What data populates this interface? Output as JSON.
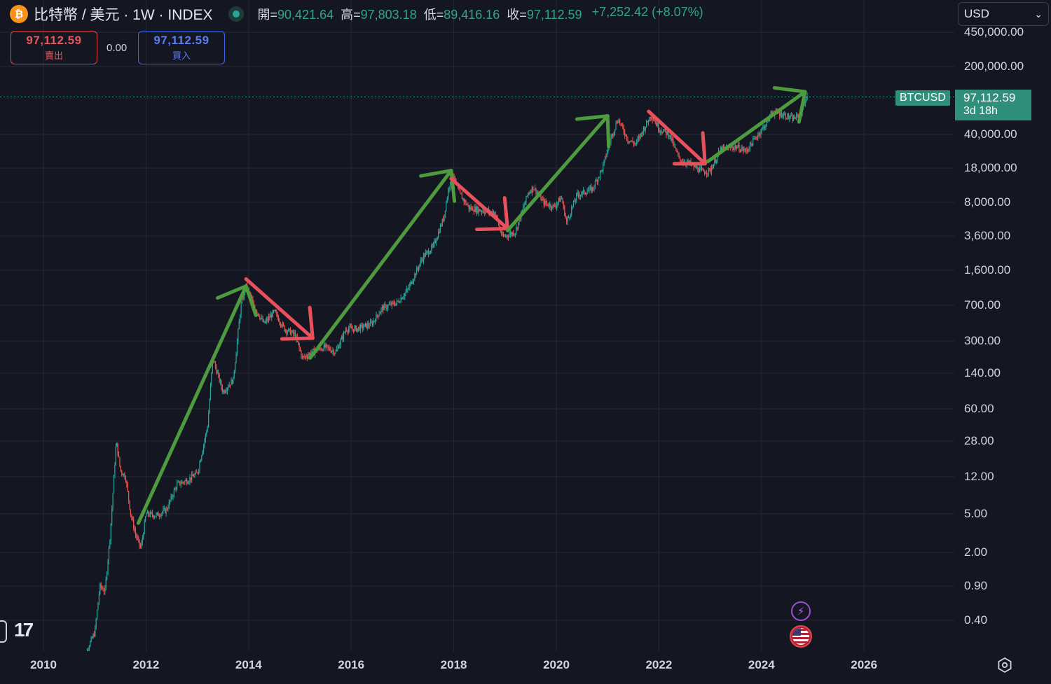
{
  "header": {
    "coin_icon_glyph": "₿",
    "title": "比特幣 / 美元 · 1W · INDEX",
    "open_label": "開=",
    "open": "90,421.64",
    "high_label": "高=",
    "high": "97,803.18",
    "low_label": "低=",
    "low": "89,416.16",
    "close_label": "收=",
    "close": "97,112.59",
    "change": "+7,252.42 (+8.07%)"
  },
  "trade": {
    "sell_price": "97,112.59",
    "sell_label": "賣出",
    "spread": "0.00",
    "buy_price": "97,112.59",
    "buy_label": "買入"
  },
  "currency": {
    "selected": "USD",
    "caret": "⌄"
  },
  "last_price": {
    "symbol": "BTCUSD",
    "price": "97,112.59",
    "countdown": "3d 18h"
  },
  "logo": {
    "text": "17"
  },
  "icons": {
    "lightning": "lightning-icon",
    "flag": "us-flag-icon",
    "settings": "gear-icon",
    "coin": "bitcoin-icon"
  },
  "colors": {
    "background": "#141722",
    "up": "#26a69a",
    "down": "#ef5350",
    "arrow_up": "#4e9a3f",
    "arrow_down": "#e8505b",
    "grid": "#262a35",
    "price_tag": "#2f8f7a"
  },
  "chart_data": {
    "type": "candlestick",
    "symbol": "BTCUSD",
    "interval": "1W",
    "y_scale": "log",
    "grid": true,
    "y_ticks": [
      "450,000.00",
      "200,000.00",
      "40,000.00",
      "18,000.00",
      "8,000.00",
      "3,600.00",
      "1,600.00",
      "700.00",
      "300.00",
      "140.00",
      "60.00",
      "28.00",
      "12.00",
      "5.00",
      "2.00",
      "0.90",
      "0.40"
    ],
    "y_tick_values": [
      450000,
      200000,
      40000,
      18000,
      8000,
      3600,
      1600,
      700,
      300,
      140,
      60,
      28,
      12,
      5,
      2,
      0.9,
      0.4
    ],
    "x_ticks": [
      "2010",
      "2012",
      "2014",
      "2016",
      "2018",
      "2020",
      "2022",
      "2024",
      "2026"
    ],
    "x_tick_values": [
      2010,
      2012,
      2014,
      2016,
      2018,
      2020,
      2022,
      2024,
      2026
    ],
    "last_price": 97112.59,
    "price_path": [
      [
        2010.7,
        0.06
      ],
      [
        2010.85,
        0.2
      ],
      [
        2011.0,
        0.3
      ],
      [
        2011.1,
        0.9
      ],
      [
        2011.2,
        0.8
      ],
      [
        2011.3,
        3
      ],
      [
        2011.42,
        28
      ],
      [
        2011.5,
        14
      ],
      [
        2011.6,
        12
      ],
      [
        2011.7,
        5
      ],
      [
        2011.8,
        3
      ],
      [
        2011.9,
        2.2
      ],
      [
        2012.0,
        5
      ],
      [
        2012.2,
        4.8
      ],
      [
        2012.4,
        5.5
      ],
      [
        2012.6,
        10
      ],
      [
        2012.8,
        11
      ],
      [
        2013.0,
        13
      ],
      [
        2013.2,
        40
      ],
      [
        2013.3,
        200
      ],
      [
        2013.5,
        90
      ],
      [
        2013.7,
        120
      ],
      [
        2013.85,
        700
      ],
      [
        2013.95,
        1100
      ],
      [
        2014.1,
        700
      ],
      [
        2014.3,
        450
      ],
      [
        2014.5,
        600
      ],
      [
        2014.7,
        400
      ],
      [
        2014.9,
        350
      ],
      [
        2015.05,
        200
      ],
      [
        2015.3,
        240
      ],
      [
        2015.5,
        260
      ],
      [
        2015.7,
        230
      ],
      [
        2015.9,
        400
      ],
      [
        2016.1,
        400
      ],
      [
        2016.4,
        450
      ],
      [
        2016.6,
        650
      ],
      [
        2016.9,
        750
      ],
      [
        2017.1,
        1000
      ],
      [
        2017.4,
        2200
      ],
      [
        2017.6,
        2800
      ],
      [
        2017.8,
        5500
      ],
      [
        2017.96,
        17000
      ],
      [
        2018.1,
        10000
      ],
      [
        2018.3,
        7000
      ],
      [
        2018.6,
        6500
      ],
      [
        2018.8,
        6300
      ],
      [
        2018.95,
        3500
      ],
      [
        2019.2,
        4000
      ],
      [
        2019.45,
        10000
      ],
      [
        2019.55,
        11500
      ],
      [
        2019.75,
        8000
      ],
      [
        2019.95,
        7200
      ],
      [
        2020.1,
        9000
      ],
      [
        2020.2,
        5000
      ],
      [
        2020.4,
        9500
      ],
      [
        2020.7,
        11000
      ],
      [
        2020.9,
        18000
      ],
      [
        2021.05,
        35000
      ],
      [
        2021.2,
        58000
      ],
      [
        2021.4,
        35000
      ],
      [
        2021.55,
        32000
      ],
      [
        2021.85,
        64000
      ],
      [
        2022.0,
        46000
      ],
      [
        2022.2,
        40000
      ],
      [
        2022.4,
        22000
      ],
      [
        2022.6,
        20000
      ],
      [
        2022.85,
        16500
      ],
      [
        2023.0,
        17000
      ],
      [
        2023.2,
        28000
      ],
      [
        2023.5,
        30000
      ],
      [
        2023.7,
        27000
      ],
      [
        2023.9,
        38000
      ],
      [
        2024.1,
        52000
      ],
      [
        2024.2,
        68000
      ],
      [
        2024.4,
        65000
      ],
      [
        2024.6,
        58000
      ],
      [
        2024.75,
        62000
      ],
      [
        2024.85,
        90000
      ],
      [
        2024.9,
        97112
      ]
    ],
    "annotations": [
      {
        "direction": "up",
        "from": [
          2011.85,
          4
        ],
        "to": [
          2013.95,
          1100
        ]
      },
      {
        "direction": "down",
        "from": [
          2013.95,
          1300
        ],
        "to": [
          2015.25,
          320
        ]
      },
      {
        "direction": "up",
        "from": [
          2015.2,
          200
        ],
        "to": [
          2017.95,
          17000
        ]
      },
      {
        "direction": "down",
        "from": [
          2017.95,
          14000
        ],
        "to": [
          2019.05,
          4300
        ]
      },
      {
        "direction": "up",
        "from": [
          2019.05,
          4100
        ],
        "to": [
          2021.0,
          62000
        ]
      },
      {
        "direction": "down",
        "from": [
          2021.8,
          69000
        ],
        "to": [
          2022.9,
          20000
        ]
      },
      {
        "direction": "up",
        "from": [
          2022.95,
          21000
        ],
        "to": [
          2024.85,
          110000
        ]
      }
    ]
  }
}
